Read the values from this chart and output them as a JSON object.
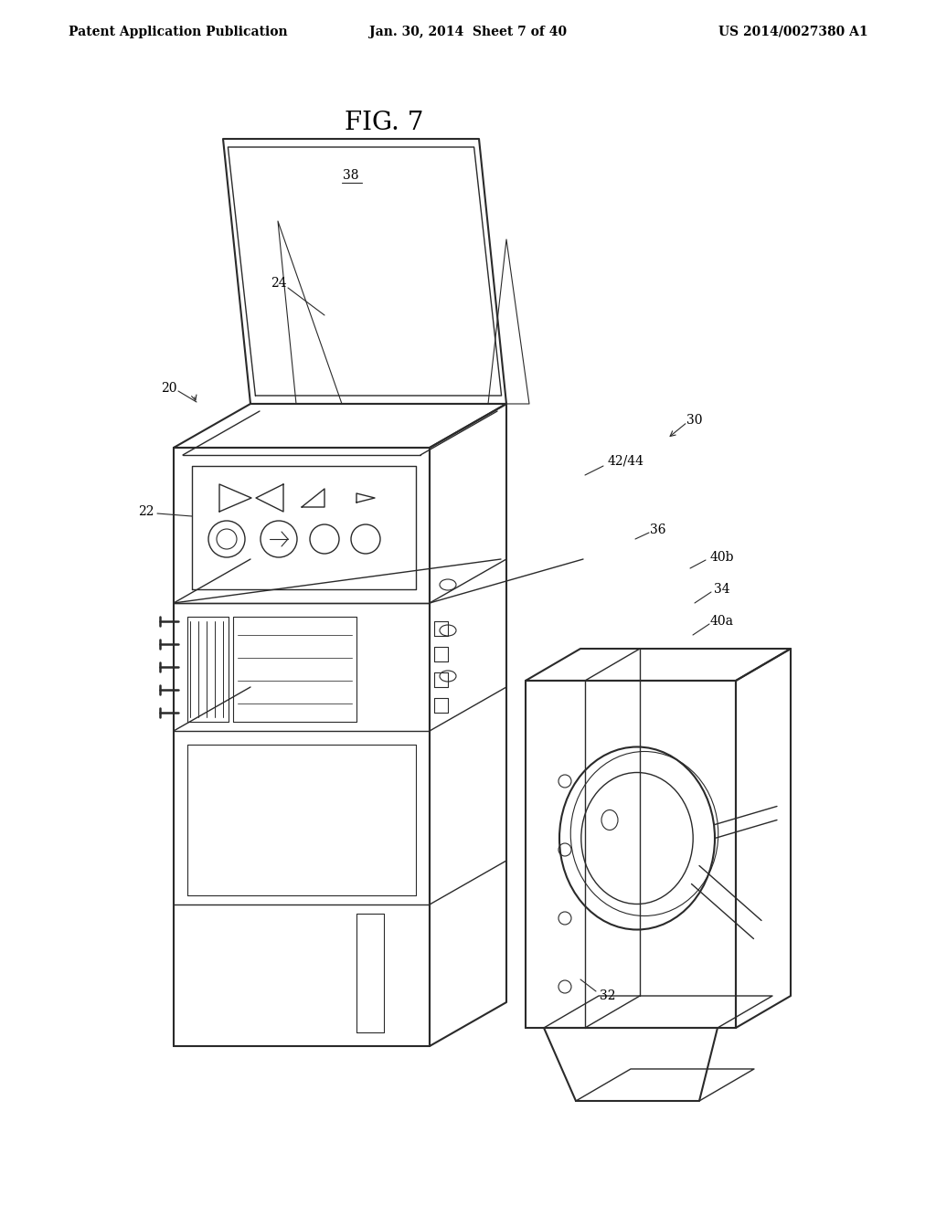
{
  "title": "FIG. 7",
  "header_left": "Patent Application Publication",
  "header_center": "Jan. 30, 2014  Sheet 7 of 40",
  "header_right": "US 2014/0027380 A1",
  "bg_color": "#ffffff",
  "line_color": "#2a2a2a",
  "fig_width": 10.24,
  "fig_height": 13.2,
  "dpi": 100
}
